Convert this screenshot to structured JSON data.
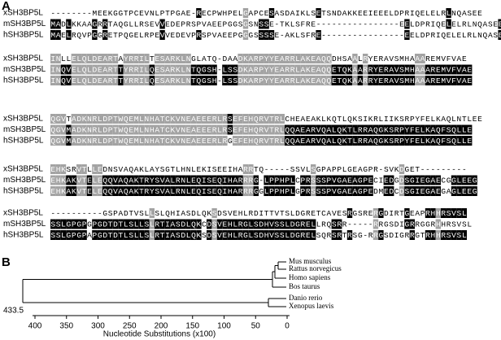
{
  "panels": {
    "a": {
      "label": "A",
      "blocks": [
        {
          "rows": [
            {
              "name": "xSH3BP5L",
              "sequence": "--------MEEKGGTPCEVNLPTPGAE-RECPWHPELGAPCESASDAIKLSETSNDAKKEEIEEELDPRIQELELRLNQASEE"
            },
            {
              "name": "mSH3BP5L",
              "sequence": "MADLKKAAGRRTAQGLLRSEVVEDEPRSPVAEEPGGSGSNSSE-TKLSFRE----------------EELDPRIQELELRLNQASEE"
            },
            {
              "name": "hSH3BP5L",
              "sequence": "MAELRQVPGGRETPQGELRPEVVEDEVPRSPVAEEPGGGSSSSE-AKLSFRE----------------EELDPRIQELELRLNQASEE"
            }
          ]
        },
        {
          "rows": [
            {
              "name": "xSH3BP5L",
              "sequence": "INLLELQLDEARTAYRRILTESARKLNGLATQ-DAADKARPYYEARRLAKEAQQDHSAALRYERAVSMHAAAREMVFVAE"
            },
            {
              "name": "mSH3BP5L",
              "sequence": "INQVELQLDEARTTYRRILQESARKLNTQGSH-LSSDKARPYYEARRLAKEAQQETQKAARRYERAVSMHAAAREMVFVAE"
            },
            {
              "name": "hSH3BP5L",
              "sequence": "INQVELQLDEARTTYRRILQESARKLNTQGSH-LSSDKARPYYEARRLAKEAQQETQKAARRYERAVSMHAAAREMVFVAE"
            }
          ]
        },
        {
          "rows": [
            {
              "name": "xSH3BP5L",
              "sequence": "QGVTADKNRLDPTWQEMLNHATCKVNEAEEERLRSEFEHQRVTRLCHEAEAKLKQTLQKSIKRLIIKSRPYFELKAQLNTLEE"
            },
            {
              "name": "mSH3BP5L",
              "sequence": "QGVMADKNRLDPTWQEMLNHATCKVNEAEEERLRSEFEHQRVTRLQQAEARVQALQKTLRRAQGKSRPYFELKAQFSQLLE"
            },
            {
              "name": "hSH3BP5L",
              "sequence": "QGVMADKNRLDPTWQEMLNHATCKVNEAEEERLRGEFEHQRVTRLQQAEARVQALQKTLRRAQGKSRPYFELKAQFSQLLE"
            }
          ]
        },
        {
          "rows": [
            {
              "name": "xSH3BP5L",
              "sequence": "EHKSRVTLLEDNSVAQAKLAYSGTLHNLEKISEEIHARRTQ-----SSVLSGPAPPLGEAGPR-SVKDGET---------"
            },
            {
              "name": "mSH3BP5L",
              "sequence": "EHKAKVTELEQQVAQAKTRYSVALRNLEQISEQIHARRRG-LPPHPLCPRSSSPVGAEAGPECIEDGDSGIEGAECGGLEEG"
            },
            {
              "name": "hSH3BP5L",
              "sequence": "EHKAKVTELEQQVAQAKTRYSVALRNLEQISEQIHARRRGGLPPHPLGPRSSSPVGAEAGPEDMEDCDSGIEGAEGAGLEEG"
            }
          ]
        },
        {
          "rows": [
            {
              "name": "xSH3BP5L",
              "sequence": "----------GSPADTVSLLSLQHIASDLQKSDSVEHLRDITTVTSLDGRETCAVESRGSRERGDIRTGEAPRHHRSVSL"
            },
            {
              "name": "mSH3BP5L",
              "sequence": "SSLGPGPGPGDTDTLSLLSLRTIASDLQKCDSVEHLRGLSDHVSSLDGRELLRQSRR-----RRGSDIGRRGGRHHRSVSL"
            },
            {
              "name": "hSH3BP5L",
              "sequence": "SSLGPGPAPGDTDTLSLLSLRTIASDLQKSDSVEHLRGLSDHVSSLDGRELSQRSRTRSG-RRGSDIGRRGTRHHRSVSL"
            }
          ]
        }
      ]
    },
    "b": {
      "label": "B",
      "leaves": [
        "Mus musculus",
        "Rattus norvegicus",
        "Homo sapiens",
        "Bos taurus",
        "Danio rerio",
        "Xenopus laevis"
      ],
      "root_label": "433.5",
      "axis_label": "Nucleotide Substitutions (x100)",
      "xticks": [
        400,
        350,
        300,
        250,
        200,
        150,
        100,
        50,
        0
      ]
    }
  }
}
